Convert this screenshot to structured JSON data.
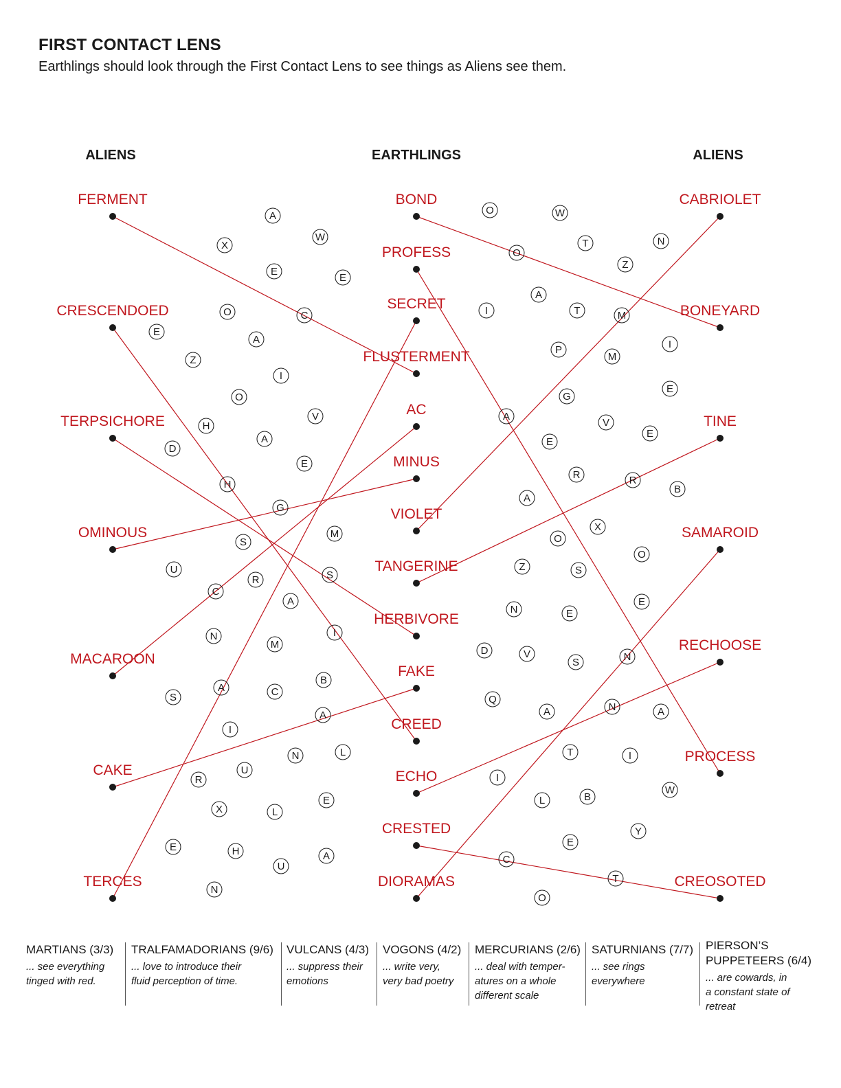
{
  "header": {
    "title": "FIRST CONTACT LENS",
    "subtitle": "Earthlings should look through the First Contact Lens to see things as Aliens see them."
  },
  "columns": {
    "left": "ALIENS",
    "center": "EARTHLINGS",
    "right": "ALIENS"
  },
  "colors": {
    "accent": "#c0171e",
    "text": "#1a1a1a"
  },
  "left_words": [
    "FERMENT",
    "CRESCENDOED",
    "TERPSICHORE",
    "OMINOUS",
    "MACAROON",
    "CAKE",
    "TERCES"
  ],
  "center_words": [
    "BOND",
    "PROFESS",
    "SECRET",
    "FLUSTERMENT",
    "AC",
    "MINUS",
    "VIOLET",
    "TANGERINE",
    "HERBIVORE",
    "FAKE",
    "CREED",
    "ECHO",
    "CRESTED",
    "DIORAMAS"
  ],
  "right_words": [
    "CABRIOLET",
    "BONEYARD",
    "TINE",
    "SAMAROID",
    "RECHOOSE",
    "PROCESS",
    "CREOSOTED"
  ],
  "connections": [
    [
      "L",
      0,
      "C",
      3
    ],
    [
      "L",
      1,
      "C",
      10
    ],
    [
      "L",
      2,
      "C",
      8
    ],
    [
      "L",
      3,
      "C",
      5
    ],
    [
      "L",
      4,
      "C",
      4
    ],
    [
      "L",
      5,
      "C",
      9
    ],
    [
      "L",
      6,
      "C",
      2
    ],
    [
      "C",
      0,
      "R",
      1
    ],
    [
      "C",
      1,
      "R",
      5
    ],
    [
      "C",
      6,
      "R",
      0
    ],
    [
      "C",
      7,
      "R",
      2
    ],
    [
      "C",
      11,
      "R",
      4
    ],
    [
      "C",
      12,
      "R",
      6
    ],
    [
      "C",
      13,
      "R",
      3
    ]
  ],
  "circled_letters": [
    "A",
    "W",
    "X",
    "E",
    "E",
    "O",
    "C",
    "E",
    "A",
    "Z",
    "I",
    "O",
    "H",
    "V",
    "D",
    "A",
    "E",
    "H",
    "G",
    "M",
    "S",
    "U",
    "S",
    "C",
    "R",
    "A",
    "N",
    "M",
    "I",
    "S",
    "A",
    "C",
    "B",
    "A",
    "I",
    "N",
    "L",
    "R",
    "U",
    "X",
    "L",
    "E",
    "E",
    "H",
    "A",
    "U",
    "N",
    "O",
    "W",
    "O",
    "T",
    "N",
    "Z",
    "A",
    "T",
    "M",
    "I",
    "P",
    "I",
    "M",
    "E",
    "G",
    "A",
    "V",
    "E",
    "E",
    "R",
    "R",
    "B",
    "A",
    "X",
    "O",
    "O",
    "Z",
    "S",
    "E",
    "N",
    "E",
    "D",
    "V",
    "S",
    "N",
    "Q",
    "A",
    "N",
    "A",
    "T",
    "I",
    "I",
    "W",
    "L",
    "B",
    "E",
    "Y",
    "C",
    "T",
    "O"
  ],
  "legend": [
    {
      "name": "MARTIANS  (3/3)",
      "desc": [
        "... see everything",
        "tinged with red."
      ]
    },
    {
      "name": "TRALFAMADORIANS (9/6)",
      "desc": [
        "... love to introduce their",
        "fluid perception of time."
      ]
    },
    {
      "name": "VULCANS (4/3)",
      "desc": [
        "... suppress their",
        "emotions"
      ]
    },
    {
      "name": "VOGONS (4/2)",
      "desc": [
        "... write very,",
        "very bad poetry"
      ]
    },
    {
      "name": "MERCURIANS (2/6)",
      "desc": [
        "... deal with temper-",
        "atures on a whole",
        "different scale"
      ]
    },
    {
      "name": "SATURNIANS (7/7)",
      "desc": [
        "... see rings",
        "everywhere"
      ]
    },
    {
      "name": [
        "PIERSON’S",
        "PUPPETEERS (6/4)"
      ],
      "desc": [
        "... are cowards, in",
        "a constant state of",
        "retreat"
      ]
    }
  ]
}
